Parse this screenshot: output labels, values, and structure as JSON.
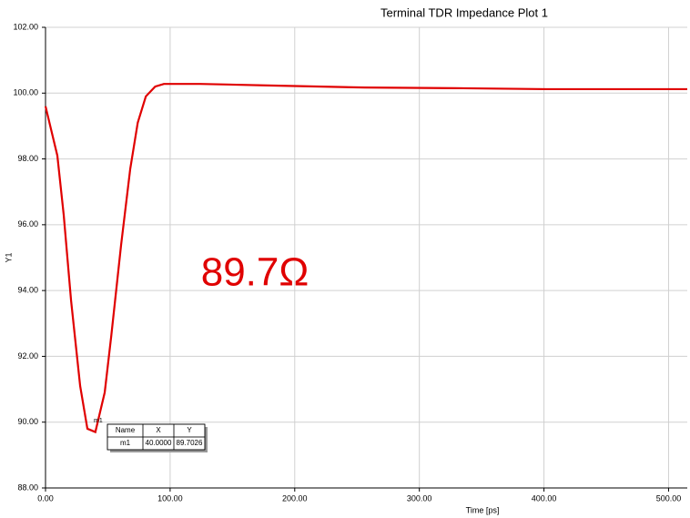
{
  "chart_data": {
    "type": "line",
    "title": "Terminal TDR Impedance Plot 1",
    "x_label": "Time [ps]",
    "y_label": "Y1",
    "x": [
      0,
      9.5,
      14.6,
      20.5,
      27.8,
      33.6,
      40,
      47.5,
      52.7,
      60.7,
      68,
      74,
      80.5,
      88,
      95,
      124,
      183,
      256,
      329,
      402,
      515
    ],
    "series": [
      {
        "color": "#e00000",
        "values": [
          99.6,
          98.1,
          96.3,
          93.7,
          91.1,
          89.8,
          89.7,
          90.9,
          92.6,
          95.4,
          97.7,
          99.1,
          99.9,
          100.2,
          100.28,
          100.28,
          100.23,
          100.17,
          100.15,
          100.12,
          100.12
        ]
      }
    ],
    "xlim": [
      0,
      515
    ],
    "ylim": [
      88,
      102
    ],
    "xticks": [
      {
        "value": 0,
        "label": "0.00"
      },
      {
        "value": 100,
        "label": "100.00"
      },
      {
        "value": 200,
        "label": "200.00"
      },
      {
        "value": 300,
        "label": "300.00"
      },
      {
        "value": 400,
        "label": "400.00"
      },
      {
        "value": 500,
        "label": "500.00"
      }
    ],
    "yticks": [
      {
        "value": 88,
        "label": "88.00"
      },
      {
        "value": 90,
        "label": "90.00"
      },
      {
        "value": 92,
        "label": "92.00"
      },
      {
        "value": 94,
        "label": "94.00"
      },
      {
        "value": 96,
        "label": "96.00"
      },
      {
        "value": 98,
        "label": "98.00"
      },
      {
        "value": 100,
        "label": "100.00"
      },
      {
        "value": 102,
        "label": "102.00"
      }
    ],
    "grid": true,
    "annotation": "89.7Ω",
    "marker": {
      "headers": [
        "Name",
        "X",
        "Y"
      ],
      "row": [
        "m1",
        "40.0000",
        "89.7026"
      ]
    }
  }
}
